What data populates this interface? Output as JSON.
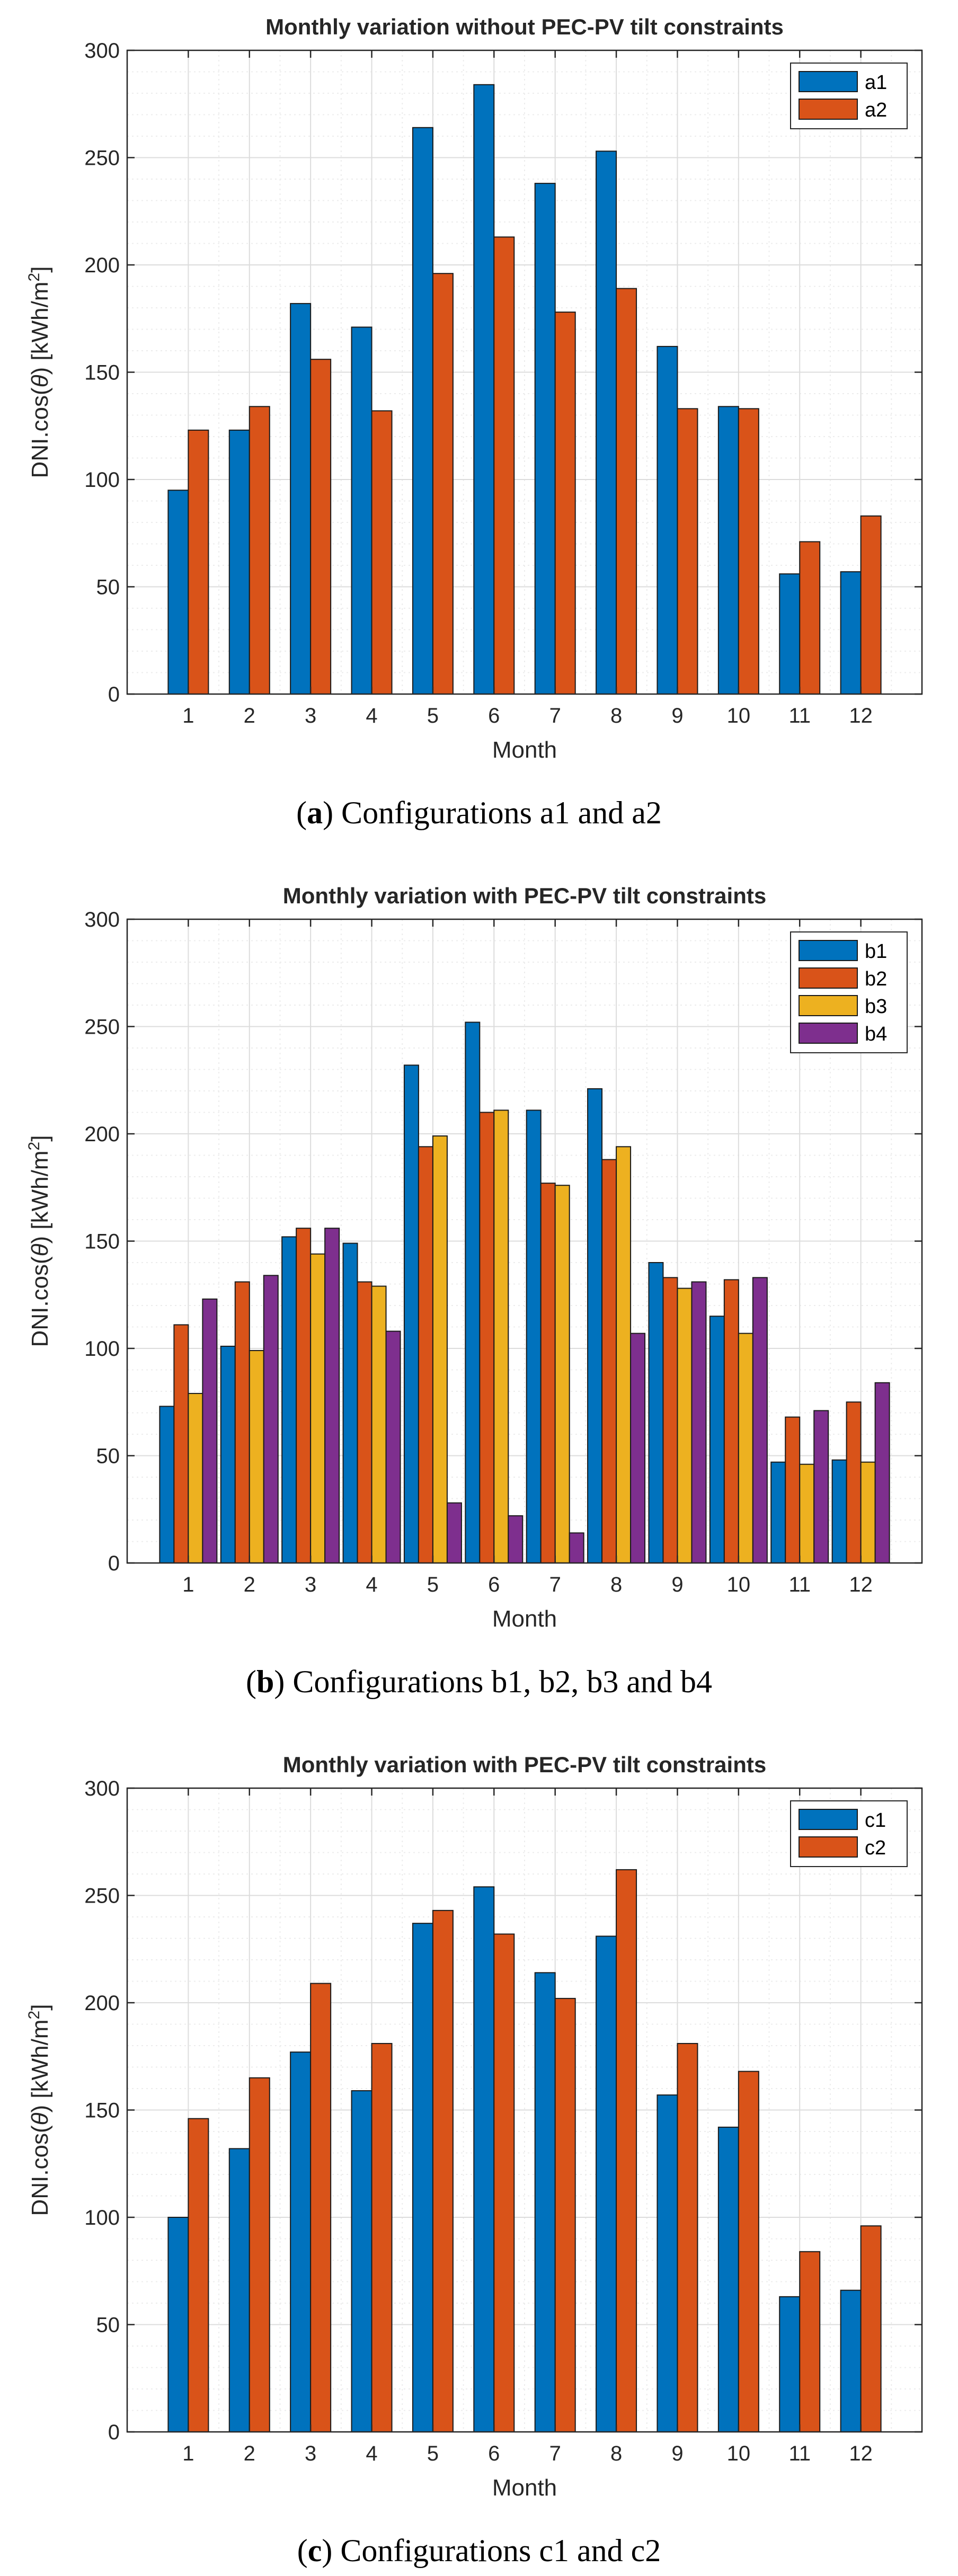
{
  "chart_data": [
    {
      "type": "bar",
      "title": "Monthly variation without PEC-PV tilt constraints",
      "xlabel": "Month",
      "ylabel_main": "DNI.cos(",
      "ylabel_theta": "θ",
      "ylabel_close": ") [kWh/m",
      "ylabel_sup": "2",
      "ylabel_end": "]",
      "ylim": [
        0,
        300
      ],
      "yticks": [
        "0",
        "50",
        "100",
        "150",
        "200",
        "250",
        "300"
      ],
      "categories": [
        "1",
        "2",
        "3",
        "4",
        "5",
        "6",
        "7",
        "8",
        "9",
        "10",
        "11",
        "12"
      ],
      "legend_position": "top-right",
      "grid": true,
      "series": [
        {
          "name": "a1",
          "color": "#0072BD",
          "values": [
            95,
            123,
            182,
            171,
            264,
            284,
            238,
            253,
            162,
            134,
            56,
            57
          ]
        },
        {
          "name": "a2",
          "color": "#D95319",
          "values": [
            123,
            134,
            156,
            132,
            196,
            213,
            178,
            189,
            133,
            133,
            71,
            83
          ]
        }
      ],
      "caption": {
        "letter": "a",
        "open": "(",
        "close": ") ",
        "text": "Configurations a1 and a2"
      }
    },
    {
      "type": "bar",
      "title": "Monthly variation with PEC-PV tilt constraints",
      "xlabel": "Month",
      "ylabel_main": "DNI.cos(",
      "ylabel_theta": "θ",
      "ylabel_close": ") [kWh/m",
      "ylabel_sup": "2",
      "ylabel_end": "]",
      "ylim": [
        0,
        300
      ],
      "yticks": [
        "0",
        "50",
        "100",
        "150",
        "200",
        "250",
        "300"
      ],
      "categories": [
        "1",
        "2",
        "3",
        "4",
        "5",
        "6",
        "7",
        "8",
        "9",
        "10",
        "11",
        "12"
      ],
      "legend_position": "top-right",
      "grid": true,
      "series": [
        {
          "name": "b1",
          "color": "#0072BD",
          "values": [
            73,
            101,
            152,
            149,
            232,
            252,
            211,
            221,
            140,
            115,
            47,
            48
          ]
        },
        {
          "name": "b2",
          "color": "#D95319",
          "values": [
            111,
            131,
            156,
            131,
            194,
            210,
            177,
            188,
            133,
            132,
            68,
            75
          ]
        },
        {
          "name": "b3",
          "color": "#EDB120",
          "values": [
            79,
            99,
            144,
            129,
            199,
            211,
            176,
            194,
            128,
            107,
            46,
            47
          ]
        },
        {
          "name": "b4",
          "color": "#7E2F8E",
          "values": [
            123,
            134,
            156,
            108,
            28,
            22,
            14,
            107,
            131,
            133,
            71,
            84
          ]
        }
      ],
      "caption": {
        "letter": "b",
        "open": "(",
        "close": ") ",
        "text": "Configurations b1, b2, b3 and b4"
      }
    },
    {
      "type": "bar",
      "title": "Monthly variation with PEC-PV tilt constraints",
      "xlabel": "Month",
      "ylabel_main": "DNI.cos(",
      "ylabel_theta": "θ",
      "ylabel_close": ") [kWh/m",
      "ylabel_sup": "2",
      "ylabel_end": "]",
      "ylim": [
        0,
        300
      ],
      "yticks": [
        "0",
        "50",
        "100",
        "150",
        "200",
        "250",
        "300"
      ],
      "categories": [
        "1",
        "2",
        "3",
        "4",
        "5",
        "6",
        "7",
        "8",
        "9",
        "10",
        "11",
        "12"
      ],
      "legend_position": "top-right",
      "grid": true,
      "series": [
        {
          "name": "c1",
          "color": "#0072BD",
          "values": [
            100,
            132,
            177,
            159,
            237,
            254,
            214,
            231,
            157,
            142,
            63,
            66
          ]
        },
        {
          "name": "c2",
          "color": "#D95319",
          "values": [
            146,
            165,
            209,
            181,
            243,
            232,
            202,
            262,
            181,
            168,
            84,
            96
          ]
        }
      ],
      "caption": {
        "letter": "c",
        "open": "(",
        "close": ") ",
        "text": "Configurations c1 and c2"
      }
    }
  ]
}
